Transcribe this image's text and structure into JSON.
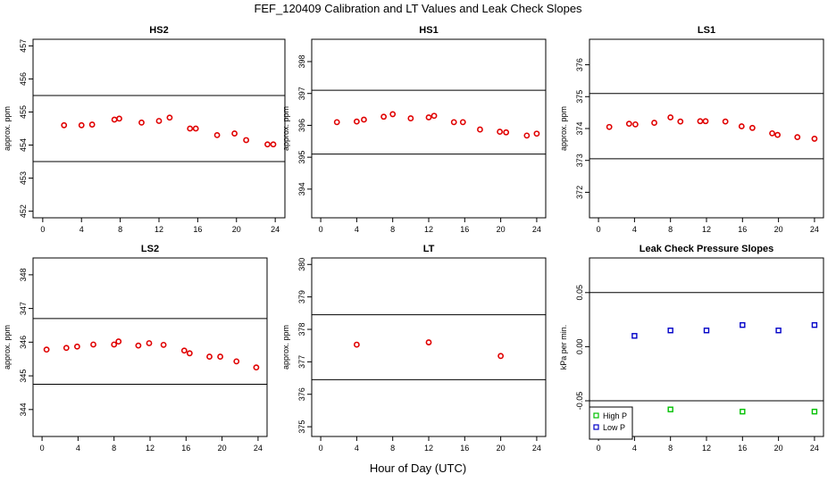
{
  "figure": {
    "title": "FEF_120409  Calibration and LT Values and Leak Check Slopes",
    "xlabel": "Hour of Day (UTC)"
  },
  "chart_data": [
    {
      "type": "scatter",
      "title": "HS2",
      "ylabel": "approx. ppm",
      "xlim": [
        -1,
        25
      ],
      "ylim": [
        451.8,
        457.2
      ],
      "xticks": [
        0,
        4,
        8,
        12,
        16,
        20,
        24
      ],
      "yticks": [
        452,
        453,
        454,
        455,
        456,
        457
      ],
      "hlines": [
        455.5,
        453.5
      ],
      "grid": false,
      "series": [
        {
          "color": "#e00000",
          "marker": "circle",
          "x": [
            2.2,
            4,
            5.1,
            7.4,
            7.9,
            10.2,
            12,
            13.1,
            15.2,
            15.8,
            18,
            19.8,
            21,
            23.2,
            23.8
          ],
          "y": [
            454.6,
            454.6,
            454.62,
            454.77,
            454.8,
            454.68,
            454.73,
            454.83,
            454.5,
            454.5,
            454.3,
            454.35,
            454.15,
            454.02,
            454.02
          ]
        }
      ]
    },
    {
      "type": "scatter",
      "title": "HS1",
      "ylabel": "approx. ppm",
      "xlim": [
        -1,
        25
      ],
      "ylim": [
        393.1,
        398.7
      ],
      "xticks": [
        0,
        4,
        8,
        12,
        16,
        20,
        24
      ],
      "yticks": [
        394,
        395,
        396,
        397,
        398
      ],
      "hlines": [
        397.1,
        395.1
      ],
      "grid": false,
      "series": [
        {
          "color": "#e00000",
          "marker": "circle",
          "x": [
            1.8,
            4,
            4.8,
            7,
            8,
            10,
            12,
            12.6,
            14.8,
            15.8,
            17.7,
            19.9,
            20.6,
            22.9,
            24
          ],
          "y": [
            396.1,
            396.12,
            396.18,
            396.27,
            396.35,
            396.22,
            396.25,
            396.3,
            396.1,
            396.1,
            395.87,
            395.8,
            395.78,
            395.68,
            395.74
          ]
        }
      ]
    },
    {
      "type": "scatter",
      "title": "LS1",
      "ylabel": "approx. ppm",
      "xlim": [
        -1,
        25
      ],
      "ylim": [
        371.2,
        376.8
      ],
      "xticks": [
        0,
        4,
        8,
        12,
        16,
        20,
        24
      ],
      "yticks": [
        372,
        373,
        374,
        375,
        376
      ],
      "hlines": [
        375.1,
        373.05
      ],
      "grid": false,
      "series": [
        {
          "color": "#e00000",
          "marker": "circle",
          "x": [
            1.2,
            3.4,
            4.1,
            6.2,
            8,
            9.1,
            11.3,
            11.9,
            14.1,
            15.9,
            17.1,
            19.3,
            19.9,
            22.1,
            24
          ],
          "y": [
            374.05,
            374.15,
            374.13,
            374.18,
            374.35,
            374.22,
            374.23,
            374.23,
            374.22,
            374.07,
            374.02,
            373.85,
            373.8,
            373.73,
            373.68
          ]
        }
      ]
    },
    {
      "type": "scatter",
      "title": "LS2",
      "ylabel": "approx. ppm",
      "xlim": [
        -1,
        25
      ],
      "ylim": [
        343.2,
        348.5
      ],
      "xticks": [
        0,
        4,
        8,
        12,
        16,
        20,
        24
      ],
      "yticks": [
        344,
        345,
        346,
        347,
        348
      ],
      "hlines": [
        346.7,
        344.75
      ],
      "grid": false,
      "series": [
        {
          "color": "#e00000",
          "marker": "circle",
          "x": [
            0.5,
            2.7,
            3.9,
            5.7,
            8,
            8.5,
            10.7,
            11.9,
            13.5,
            15.8,
            16.4,
            18.6,
            19.8,
            21.6,
            23.8
          ],
          "y": [
            345.78,
            345.83,
            345.87,
            345.93,
            345.93,
            346.02,
            345.9,
            345.97,
            345.92,
            345.75,
            345.67,
            345.57,
            345.57,
            345.43,
            345.25
          ]
        }
      ]
    },
    {
      "type": "scatter",
      "title": "LT",
      "ylabel": "approx. ppm",
      "xlim": [
        -1,
        25
      ],
      "ylim": [
        374.7,
        380.2
      ],
      "xticks": [
        0,
        4,
        8,
        12,
        16,
        20,
        24
      ],
      "yticks": [
        375,
        376,
        377,
        378,
        379,
        380
      ],
      "hlines": [
        378.45,
        376.45
      ],
      "grid": false,
      "series": [
        {
          "color": "#e00000",
          "marker": "circle",
          "x": [
            4,
            12,
            20
          ],
          "y": [
            377.53,
            377.6,
            377.18
          ]
        }
      ]
    },
    {
      "type": "scatter",
      "title": "Leak Check Pressure Slopes",
      "ylabel": "kPa per min.",
      "xlim": [
        -1,
        25
      ],
      "ylim": [
        -0.083,
        0.082
      ],
      "xticks": [
        0,
        4,
        8,
        12,
        16,
        20,
        24
      ],
      "yticks": [
        -0.05,
        0.0,
        0.05
      ],
      "ytick_labels": [
        "-0.05",
        "0.00",
        "0.05"
      ],
      "hlines": [
        0.05,
        -0.05
      ],
      "grid": false,
      "legend": "bottom-left",
      "series": [
        {
          "name": "High P",
          "color": "#00c000",
          "marker": "square",
          "x": [
            8,
            16,
            24
          ],
          "y": [
            -0.058,
            -0.06,
            -0.06
          ]
        },
        {
          "name": "Low P",
          "color": "#0000c8",
          "marker": "square",
          "x": [
            4,
            8,
            12,
            16,
            20,
            24
          ],
          "y": [
            0.01,
            0.015,
            0.015,
            0.02,
            0.015,
            0.02
          ]
        }
      ]
    }
  ]
}
